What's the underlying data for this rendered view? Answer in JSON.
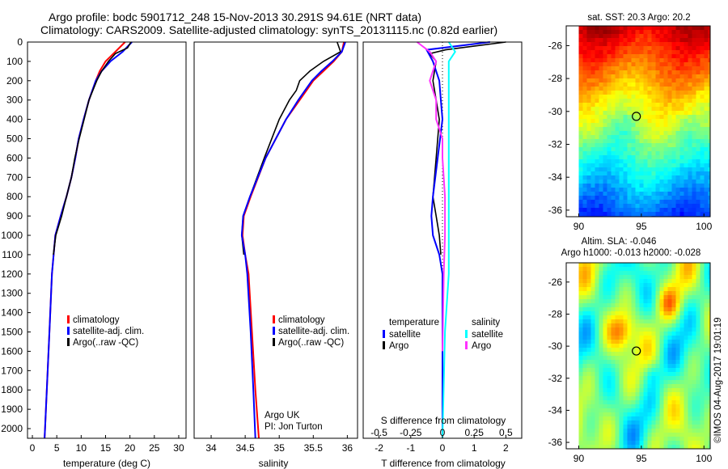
{
  "title": {
    "line1": "Argo profile: bodc 5901712_248 15-Nov-2013 30.291S 94.61E (NRT data)",
    "line2": "Climatology: CARS2009. Satellite-adjusted climatology: synTS_20131115.nc (0.82d earlier)"
  },
  "timestamp": "©IMOS 04-Aug-2017 19:01:19",
  "colors": {
    "climatology": "#ff0000",
    "satellite": "#0000ff",
    "argo": "#000000",
    "argo_sal": "#ff33ff",
    "sat_sal": "#00ffff"
  },
  "chart_data": [
    {
      "type": "line",
      "xlabel": "temperature (deg C)",
      "ylabel": "",
      "xlim": [
        -1,
        31.5
      ],
      "ylim": [
        2050,
        0
      ],
      "xticks": [
        "0",
        "5",
        "10",
        "15",
        "20",
        "25",
        "30"
      ],
      "yticks": [
        "0",
        "100",
        "200",
        "300",
        "400",
        "500",
        "600",
        "700",
        "800",
        "900",
        "1000",
        "1100",
        "1200",
        "1300",
        "1400",
        "1500",
        "1600",
        "1700",
        "1800",
        "1900",
        "2000"
      ],
      "legend": [
        "climatology",
        "satellite-adj. clim.",
        "Argo(..raw -QC)"
      ],
      "series": [
        {
          "name": "climatology",
          "depth": [
            0,
            50,
            100,
            150,
            200,
            300,
            400,
            500,
            600,
            700,
            800,
            900,
            1000,
            1200,
            1500,
            2000,
            2050
          ],
          "values": [
            19.0,
            17.0,
            15.0,
            13.8,
            13.0,
            11.6,
            10.5,
            9.5,
            8.8,
            8.0,
            7.0,
            5.8,
            4.7,
            4.0,
            3.5,
            2.6,
            2.5
          ]
        },
        {
          "name": "satellite-adj. clim.",
          "depth": [
            0,
            50,
            100,
            150,
            200,
            300,
            400,
            500,
            600,
            700,
            800,
            900,
            1000,
            1200,
            1500,
            2000,
            2050
          ],
          "values": [
            20.4,
            18.5,
            16.0,
            14.2,
            13.0,
            11.6,
            10.5,
            9.5,
            8.8,
            8.0,
            7.0,
            5.8,
            4.7,
            4.0,
            3.5,
            2.6,
            2.5
          ]
        },
        {
          "name": "Argo(..raw -QC)",
          "depth": [
            0,
            30,
            60,
            100,
            150,
            200,
            300,
            400,
            500,
            600,
            700,
            800,
            900,
            1000,
            1100
          ],
          "values": [
            20.2,
            19.5,
            17.0,
            15.6,
            14.2,
            13.2,
            11.6,
            10.6,
            9.6,
            8.7,
            8.0,
            7.0,
            6.0,
            4.8,
            4.3
          ]
        }
      ]
    },
    {
      "type": "line",
      "xlabel": "salinity",
      "xlim": [
        33.75,
        36.15
      ],
      "ylim": [
        2050,
        0
      ],
      "xticks": [
        "34",
        "34.5",
        "35",
        "35.5",
        "36"
      ],
      "legend": [
        "climatology",
        "satellite-adj. clim.",
        "Argo(..raw -QC)"
      ],
      "annotation": [
        "Argo UK",
        "PI: Jon Turton"
      ],
      "series": [
        {
          "name": "climatology",
          "depth": [
            0,
            50,
            100,
            150,
            200,
            300,
            400,
            600,
            800,
            900,
            1000,
            1100,
            1200,
            1500,
            1800,
            2050
          ],
          "values": [
            35.95,
            35.92,
            35.8,
            35.65,
            35.5,
            35.3,
            35.1,
            34.8,
            34.58,
            34.48,
            34.46,
            34.5,
            34.55,
            34.6,
            34.65,
            34.7
          ]
        },
        {
          "name": "satellite-adj. clim.",
          "depth": [
            0,
            50,
            100,
            150,
            200,
            300,
            400,
            600,
            800,
            900,
            1000,
            1100,
            1200,
            1500,
            1800,
            2050
          ],
          "values": [
            35.97,
            35.92,
            35.78,
            35.62,
            35.48,
            35.28,
            35.1,
            34.8,
            34.57,
            34.47,
            34.45,
            34.5,
            34.53,
            34.58,
            34.62,
            34.65
          ]
        },
        {
          "name": "Argo(..raw -QC)",
          "depth": [
            0,
            50,
            100,
            150,
            200,
            250,
            300,
            400,
            600,
            800,
            900,
            1000,
            1100
          ],
          "values": [
            35.85,
            35.9,
            35.65,
            35.45,
            35.3,
            35.25,
            35.15,
            35.0,
            34.78,
            34.57,
            34.47,
            34.45,
            34.48
          ]
        }
      ]
    },
    {
      "type": "line",
      "xlabel": "T difference from climatology",
      "xlabel2": "S difference from climatology",
      "xlim": [
        -2.5,
        2.5
      ],
      "ylim": [
        2050,
        0
      ],
      "xticks": [
        "-2",
        "-1",
        "0",
        "1",
        "2"
      ],
      "xticks2": [
        "-0.5",
        "-0.25",
        "0",
        "0.25",
        "0.5"
      ],
      "legend_t": {
        "title": "temperature",
        "items": [
          "satellite",
          "Argo"
        ]
      },
      "legend_s": {
        "title": "salinity",
        "items": [
          "satellite",
          "Argo"
        ]
      },
      "series": [
        {
          "name": "temperature satellite",
          "depth": [
            0,
            40,
            100,
            200,
            300,
            400,
            600,
            800,
            900,
            1000,
            1100,
            1200,
            1500,
            2050
          ],
          "values": [
            1.5,
            -0.5,
            -0.3,
            -0.1,
            -0.05,
            0,
            -0.15,
            -0.3,
            -0.35,
            -0.3,
            -0.1,
            0,
            0,
            0
          ]
        },
        {
          "name": "temperature Argo",
          "depth": [
            0,
            40,
            60,
            100,
            200,
            300,
            400,
            600,
            800,
            900,
            1000,
            1100
          ],
          "values": [
            2.0,
            0.1,
            -0.4,
            -0.2,
            -0.3,
            -0.2,
            -0.1,
            -0.2,
            -0.3,
            -0.2,
            -0.1,
            -0.05
          ]
        },
        {
          "name": "salinity satellite",
          "depth": [
            0,
            50,
            100,
            200,
            300,
            400,
            600,
            800,
            1000,
            1200,
            1500,
            2050
          ],
          "values": [
            0.05,
            0.1,
            0.05,
            0.05,
            0.05,
            0.05,
            0.05,
            0.05,
            0.05,
            0.05,
            0.02,
            0.0
          ]
        },
        {
          "name": "salinity Argo",
          "depth": [
            0,
            50,
            100,
            200,
            300,
            400,
            500,
            600,
            800,
            1000,
            1200,
            1600
          ],
          "values": [
            -0.2,
            -0.1,
            -0.05,
            -0.1,
            -0.05,
            -0.05,
            0,
            0,
            0.02,
            0.02,
            0.01,
            0.0
          ]
        }
      ]
    }
  ],
  "maps": [
    {
      "title": "sat. SST: 20.3 Argo: 20.2",
      "xticks": [
        "90",
        "95",
        "100"
      ],
      "yticks": [
        "-26",
        "-28",
        "-30",
        "-32",
        "-34",
        "-36"
      ],
      "lon_range": [
        89,
        100.5
      ],
      "lat_range": [
        -36.4,
        -24.8
      ],
      "marker": [
        94.6,
        -30.3
      ],
      "colormap": "jet",
      "field": "sst"
    },
    {
      "title1": "Altim. SLA: -0.046",
      "title2": "Argo h1000: -0.013 h2000: -0.028",
      "xticks": [
        "90",
        "95",
        "100"
      ],
      "yticks": [
        "-26",
        "-28",
        "-30",
        "-32",
        "-34",
        "-36"
      ],
      "lon_range": [
        89,
        100.5
      ],
      "lat_range": [
        -36.4,
        -24.8
      ],
      "marker": [
        94.6,
        -30.3
      ],
      "colormap": "jet",
      "field": "sla"
    }
  ]
}
